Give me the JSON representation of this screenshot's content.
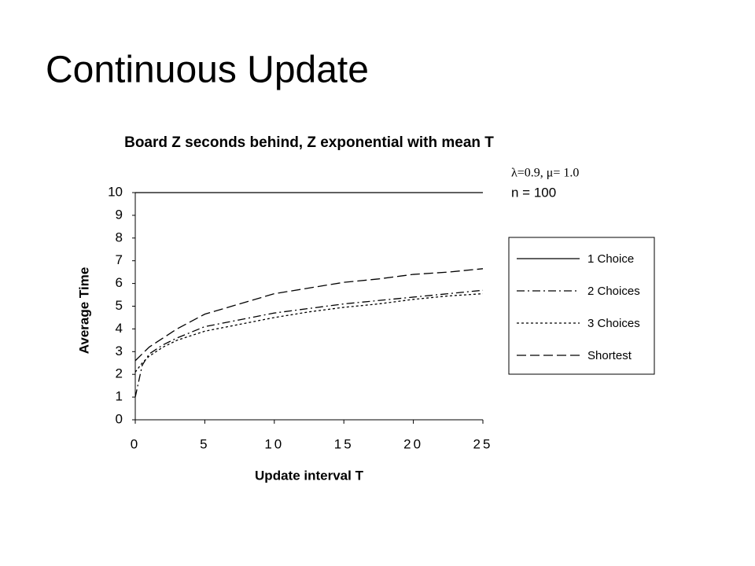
{
  "slide_title": "Continuous Update",
  "chart_data": {
    "type": "line",
    "title": "Board Z seconds behind, Z exponential with mean T",
    "xlabel": "Update interval T",
    "ylabel": "Average Time",
    "annotations": [
      "λ=0.9, μ= 1.0",
      "n = 100"
    ],
    "x": [
      0,
      0.5,
      1,
      2,
      3,
      5,
      7.5,
      10,
      12.5,
      15,
      17.5,
      20,
      22.5,
      25
    ],
    "series": [
      {
        "name": "1 Choice",
        "color": "#000000",
        "dash": "solid",
        "values": [
          10,
          10,
          10,
          10,
          10,
          10,
          10,
          10,
          10,
          10,
          10,
          10,
          10,
          10
        ]
      },
      {
        "name": "2 Choices",
        "color": "#000000",
        "dash": "dashdot",
        "values": [
          1.0,
          2.4,
          2.9,
          3.3,
          3.6,
          4.1,
          4.4,
          4.7,
          4.9,
          5.1,
          5.25,
          5.4,
          5.55,
          5.7
        ]
      },
      {
        "name": "3 Choices",
        "color": "#000000",
        "dash": "dotted",
        "values": [
          2.1,
          2.5,
          2.8,
          3.2,
          3.5,
          3.9,
          4.2,
          4.5,
          4.75,
          4.95,
          5.1,
          5.3,
          5.45,
          5.55
        ]
      },
      {
        "name": "Shortest",
        "color": "#000000",
        "dash": "dashed",
        "values": [
          2.6,
          2.9,
          3.2,
          3.6,
          4.0,
          4.65,
          5.1,
          5.55,
          5.8,
          6.05,
          6.2,
          6.4,
          6.5,
          6.65
        ]
      }
    ],
    "xlim": [
      0,
      25
    ],
    "xticks": [
      0,
      5,
      10,
      15,
      20,
      25
    ],
    "ylim": [
      0,
      10
    ],
    "yticks": [
      0,
      1,
      2,
      3,
      4,
      5,
      6,
      7,
      8,
      9,
      10
    ],
    "legend": "right"
  }
}
